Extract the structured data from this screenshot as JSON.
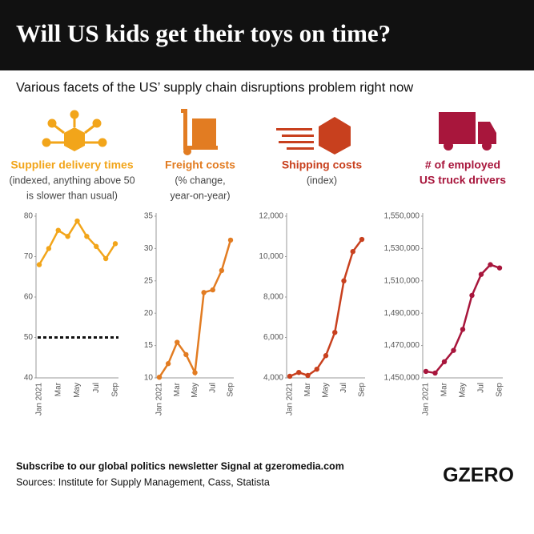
{
  "header": {
    "title": "Will US kids get their toys on time?",
    "subtitle": "Various facets of the US’ supply chain disruptions problem right now"
  },
  "chart_data": [
    {
      "type": "line",
      "title": [
        "Supplier delivery times"
      ],
      "subtitle": [
        "(indexed, anything above 50",
        "is slower than usual)"
      ],
      "color": "#f2a51a",
      "categories": [
        "Jan 2021",
        null,
        "Mar",
        null,
        "May",
        null,
        "Jul",
        null,
        "Sep"
      ],
      "values": [
        68,
        72,
        76.5,
        75,
        78.8,
        75,
        72.5,
        69.5,
        73.2
      ],
      "ylim": [
        40,
        80
      ],
      "yticks": [
        40,
        50,
        60,
        70,
        80
      ],
      "reference": 50
    },
    {
      "type": "line",
      "title": [
        "Freight costs"
      ],
      "subtitle": [
        "(% change,",
        "year-on-year)"
      ],
      "color": "#e27c22",
      "categories": [
        "Jan 2021",
        null,
        "Mar",
        null,
        "May",
        null,
        "Jul",
        null,
        "Sep"
      ],
      "values": [
        10.1,
        12.2,
        15.5,
        13.6,
        10.8,
        23.2,
        23.6,
        26.6,
        31.3
      ],
      "ylim": [
        10,
        35
      ],
      "yticks": [
        10,
        15,
        20,
        25,
        30,
        35
      ]
    },
    {
      "type": "line",
      "title": [
        "Shipping costs"
      ],
      "subtitle": [
        "(index)"
      ],
      "color": "#c8401e",
      "categories": [
        "Jan 2021",
        null,
        "Mar",
        null,
        "May",
        null,
        "Jul",
        null,
        "Sep"
      ],
      "values": [
        4080,
        4270,
        4120,
        4430,
        5100,
        6250,
        8800,
        10250,
        10850
      ],
      "ylim": [
        4000,
        12000
      ],
      "yticks": [
        {
          "value": 4000,
          "label": "4,000"
        },
        {
          "value": 6000,
          "label": "6,000"
        },
        {
          "value": 8000,
          "label": "8,000"
        },
        {
          "value": 10000,
          "label": "10,000"
        },
        {
          "value": 12000,
          "label": "12,000"
        }
      ]
    },
    {
      "type": "line",
      "title": [
        "# of employed",
        "US truck drivers"
      ],
      "color": "#a8163c",
      "categories": [
        "Jan 2021",
        null,
        "Mar",
        null,
        "May",
        null,
        "Jul",
        null,
        "Sep"
      ],
      "values": [
        1454000,
        1453000,
        1460000,
        1467000,
        1480000,
        1501000,
        1514000,
        1520000,
        1518000
      ],
      "ylim": [
        1450000,
        1550000
      ],
      "yticks": [
        {
          "value": 1450000,
          "label": "1,450,000"
        },
        {
          "value": 1470000,
          "label": "1,470,000"
        },
        {
          "value": 1490000,
          "label": "1,490,000"
        },
        {
          "value": 1510000,
          "label": "1,510,000"
        },
        {
          "value": 1530000,
          "label": "1,530,000"
        },
        {
          "value": 1550000,
          "label": "1,550,000"
        }
      ]
    }
  ],
  "footer": {
    "cta": "Subscribe to our global politics newsletter Signal at gzeromedia.com",
    "sources": "Sources: Institute for Supply Management, Cass, Statista",
    "logo": "GZERO"
  }
}
